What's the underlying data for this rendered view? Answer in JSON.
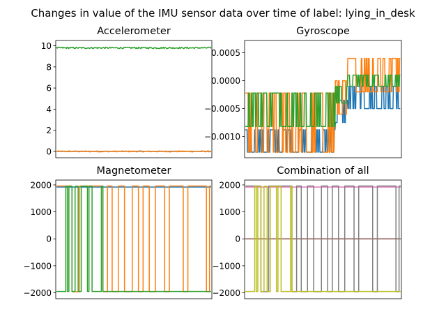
{
  "suptitle": "Changes in value of the IMU sensor data over time of label: lying_in_desk",
  "colors": {
    "c0": "#1f77b4",
    "c1": "#ff7f0e",
    "c2": "#2ca02c",
    "c3": "#d62728",
    "c4": "#9467bd",
    "c5": "#8c564b",
    "c6": "#e377c2",
    "c7": "#7f7f7f",
    "c8": "#bcbd22"
  },
  "chart_data": [
    {
      "type": "line",
      "title": "Accelerometer",
      "xlabel": "",
      "ylabel": "",
      "x_ticks_visible": false,
      "ylim": [
        -0.6,
        10.5
      ],
      "yticks": [
        0,
        2,
        4,
        6,
        8,
        10
      ],
      "ytick_labels": [
        "0",
        "2",
        "4",
        "6",
        "8",
        "10"
      ],
      "grid": false,
      "series": [
        {
          "color": "#1f77b4",
          "kind": "flat",
          "level": 0.0,
          "values": [
            0.0,
            0.0
          ]
        },
        {
          "color": "#ff7f0e",
          "kind": "noise",
          "level": 0.0,
          "amp": 0.06,
          "values": [
            0.0,
            0.0
          ]
        },
        {
          "color": "#2ca02c",
          "kind": "noise",
          "level": 9.8,
          "amp": 0.07,
          "values": [
            9.8,
            9.8
          ]
        }
      ]
    },
    {
      "type": "line",
      "title": "Gyroscope",
      "xlabel": "",
      "ylabel": "",
      "x_ticks_visible": false,
      "ylim": [
        -0.00138,
        0.00072
      ],
      "yticks": [
        -0.001,
        -0.0005,
        0.0,
        0.0005
      ],
      "ytick_labels": [
        "−0.0010",
        "−0.0005",
        "0.0000",
        "0.0005"
      ],
      "grid": false,
      "series": [
        {
          "color": "#1f77b4",
          "kind": "steps",
          "segments": [
            {
              "from": 0.0,
              "to": 0.58,
              "a": -0.00128,
              "b": -0.00088
            },
            {
              "from": 0.58,
              "to": 0.66,
              "a": -0.00075,
              "b": -0.00035
            },
            {
              "from": 0.66,
              "to": 1.0,
              "a": -0.0005,
              "b": -0.0001
            }
          ]
        },
        {
          "color": "#ff7f0e",
          "kind": "steps",
          "segments": [
            {
              "from": 0.0,
              "to": 0.58,
              "a": -0.00128,
              "b": -0.00022
            },
            {
              "from": 0.58,
              "to": 0.66,
              "a": -0.0006,
              "b": 0.0
            },
            {
              "from": 0.66,
              "to": 1.0,
              "a": -0.0002,
              "b": 0.0004
            }
          ]
        },
        {
          "color": "#2ca02c",
          "kind": "steps",
          "segments": [
            {
              "from": 0.0,
              "to": 0.58,
              "a": -0.00082,
              "b": -0.00022
            },
            {
              "from": 0.58,
              "to": 0.66,
              "a": -0.0004,
              "b": -0.0001
            },
            {
              "from": 0.66,
              "to": 1.0,
              "a": -0.0001,
              "b": 0.0001
            }
          ]
        }
      ]
    },
    {
      "type": "line",
      "title": "Magnetometer",
      "xlabel": "",
      "ylabel": "",
      "x_ticks_visible": false,
      "ylim": [
        -2220,
        2180
      ],
      "yticks": [
        -2000,
        -1000,
        0,
        1000,
        2000
      ],
      "ytick_labels": [
        "−2000",
        "−1000",
        "0",
        "1000",
        "2000"
      ],
      "grid": false,
      "series": [
        {
          "color": "#1f77b4",
          "kind": "flat",
          "level": 1920,
          "values": [
            1920,
            1920
          ]
        },
        {
          "color": "#ff7f0e",
          "kind": "toggle",
          "high": 1960,
          "low": -1960,
          "switches": [
            0.1,
            0.15,
            0.3,
            0.33,
            0.36,
            0.4,
            0.44,
            0.49,
            0.53,
            0.56,
            0.6,
            0.64,
            0.7,
            0.73,
            0.82,
            0.85,
            0.97,
            0.99
          ]
        },
        {
          "color": "#2ca02c",
          "kind": "toggle",
          "high": 1950,
          "low": -1950,
          "startLow": true,
          "switches": [
            0.06,
            0.07,
            0.08,
            0.1,
            0.12,
            0.14,
            0.16,
            0.2,
            0.21,
            0.23,
            0.29,
            0.3
          ]
        }
      ]
    },
    {
      "type": "line",
      "title": "Combination of all",
      "xlabel": "",
      "ylabel": "",
      "x_ticks_visible": false,
      "ylim": [
        -2220,
        2180
      ],
      "yticks": [
        -2000,
        -1000,
        0,
        1000,
        2000
      ],
      "ytick_labels": [
        "−2000",
        "−1000",
        "0",
        "1000",
        "2000"
      ],
      "grid": false,
      "series": [
        {
          "color": "#1f77b4",
          "kind": "flat",
          "level": 0,
          "values": [
            0,
            0
          ]
        },
        {
          "color": "#ff7f0e",
          "kind": "flat",
          "level": 0,
          "values": [
            0,
            0
          ]
        },
        {
          "color": "#2ca02c",
          "kind": "flat",
          "level": 0,
          "values": [
            0,
            0
          ]
        },
        {
          "color": "#d62728",
          "kind": "flat",
          "level": 0,
          "values": [
            0,
            0
          ]
        },
        {
          "color": "#9467bd",
          "kind": "flat",
          "level": 0,
          "values": [
            0,
            0
          ]
        },
        {
          "color": "#8c564b",
          "kind": "flat",
          "level": 0,
          "values": [
            0,
            0
          ]
        },
        {
          "color": "#e377c2",
          "kind": "flat",
          "level": 1920,
          "values": [
            1920,
            1920
          ]
        },
        {
          "color": "#7f7f7f",
          "kind": "toggle",
          "high": 1960,
          "low": -1960,
          "switches": [
            0.1,
            0.15,
            0.3,
            0.33,
            0.36,
            0.4,
            0.44,
            0.49,
            0.53,
            0.56,
            0.6,
            0.64,
            0.7,
            0.73,
            0.82,
            0.85,
            0.97,
            0.99
          ]
        },
        {
          "color": "#bcbd22",
          "kind": "toggle",
          "high": 1950,
          "low": -1950,
          "startLow": true,
          "switches": [
            0.06,
            0.07,
            0.08,
            0.1,
            0.12,
            0.14,
            0.16,
            0.2,
            0.21,
            0.23,
            0.29,
            0.3
          ]
        }
      ]
    }
  ]
}
